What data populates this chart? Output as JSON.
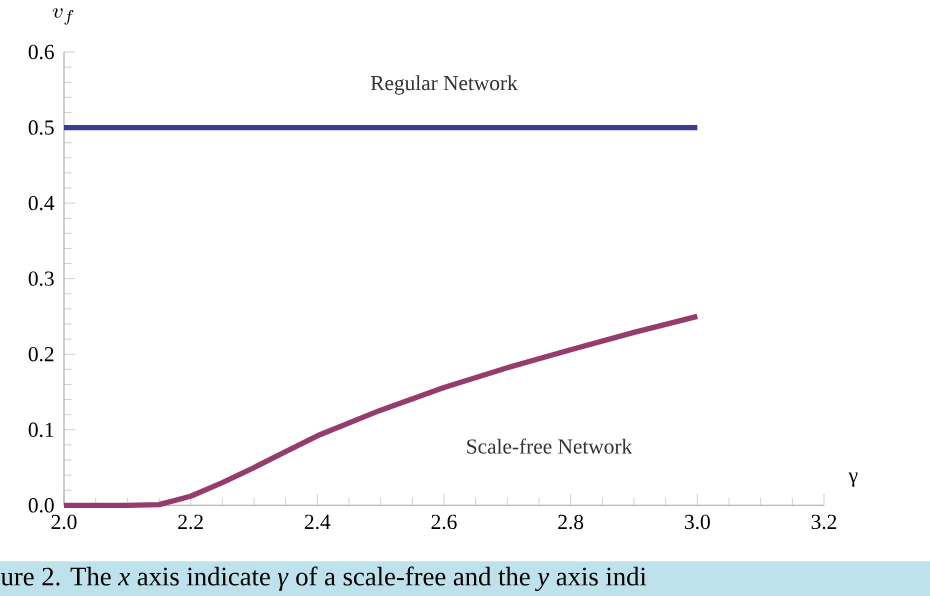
{
  "chart_data": {
    "type": "line",
    "xlabel": "γ",
    "ylabel": "v_{f}",
    "x": [
      2.0,
      2.1,
      2.15,
      2.2,
      2.25,
      2.3,
      2.35,
      2.4,
      2.5,
      2.6,
      2.7,
      2.8,
      2.9,
      3.0
    ],
    "series": [
      {
        "name": "Regular Network",
        "color": "#3b3b96",
        "values": [
          0.5,
          0.5,
          0.5,
          0.5,
          0.5,
          0.5,
          0.5,
          0.5,
          0.5,
          0.5,
          0.5,
          0.5,
          0.5,
          0.5
        ]
      },
      {
        "name": "Scale-free Network",
        "color": "#963c6c",
        "values": [
          0,
          0,
          0.001,
          0.012,
          0.03,
          0.05,
          0.071,
          0.092,
          0.126,
          0.156,
          0.182,
          0.206,
          0.229,
          0.25
        ]
      }
    ],
    "xlim": [
      2.0,
      3.2
    ],
    "ylim": [
      0,
      0.6
    ],
    "xticks": [
      {
        "value": 2.0,
        "label": "2.0"
      },
      2.2,
      2.4,
      2.6,
      2.8,
      {
        "value": 3.0,
        "label": "3.0"
      },
      3.2
    ],
    "yticks": [
      {
        "value": 0,
        "label": "0.0"
      },
      0.1,
      0.2,
      0.3,
      0.4,
      0.5,
      0.6
    ],
    "grid": false,
    "legend": false,
    "marker": "none",
    "line_style": "solid",
    "annotations": [
      "ure 2. The *x* axis indicate *γ* of a scale-free and the *y* axis indi"
    ]
  }
}
